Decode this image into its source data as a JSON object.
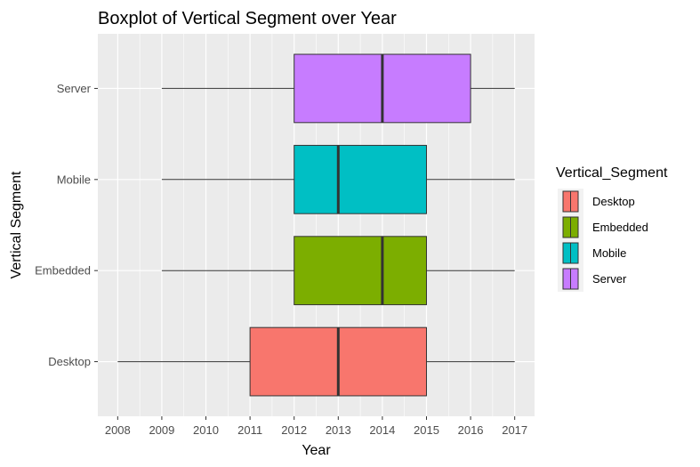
{
  "chart_data": {
    "type": "boxplot",
    "orientation": "horizontal",
    "title": "Boxplot of Vertical Segment over Year",
    "xlabel": "Year",
    "ylabel": "Vertical Segment",
    "xlim": [
      2007.55,
      2017.45
    ],
    "xticks": [
      2008,
      2009,
      2010,
      2011,
      2012,
      2013,
      2014,
      2015,
      2016,
      2017
    ],
    "xtick_labels": [
      "2008",
      "2009",
      "2010",
      "2011",
      "2012",
      "2013",
      "2014",
      "2015",
      "2016",
      "2017"
    ],
    "categories": [
      "Desktop",
      "Embedded",
      "Mobile",
      "Server"
    ],
    "grid": true,
    "legend": {
      "title": "Vertical_Segment",
      "placement": "right",
      "entries": [
        "Desktop",
        "Embedded",
        "Mobile",
        "Server"
      ]
    },
    "series": [
      {
        "category": "Desktop",
        "color": "#F8766D",
        "whisker_low": 2008,
        "q1": 2011,
        "median": 2013,
        "q3": 2015,
        "whisker_high": 2017
      },
      {
        "category": "Embedded",
        "color": "#7CAE00",
        "whisker_low": 2009,
        "q1": 2012,
        "median": 2014,
        "q3": 2015,
        "whisker_high": 2017
      },
      {
        "category": "Mobile",
        "color": "#00BFC4",
        "whisker_low": 2009,
        "q1": 2012,
        "median": 2013,
        "q3": 2015,
        "whisker_high": 2017
      },
      {
        "category": "Server",
        "color": "#C77CFF",
        "whisker_low": 2009,
        "q1": 2012,
        "median": 2014,
        "q3": 2016,
        "whisker_high": 2017
      }
    ],
    "colors": {
      "panel_background": "#EBEBEB",
      "grid_major": "#FFFFFF",
      "box_outline": "#333333",
      "whisker": "#333333",
      "median": "#333333",
      "tick_text": "#4D4D4D",
      "axis_tick": "#333333"
    }
  }
}
